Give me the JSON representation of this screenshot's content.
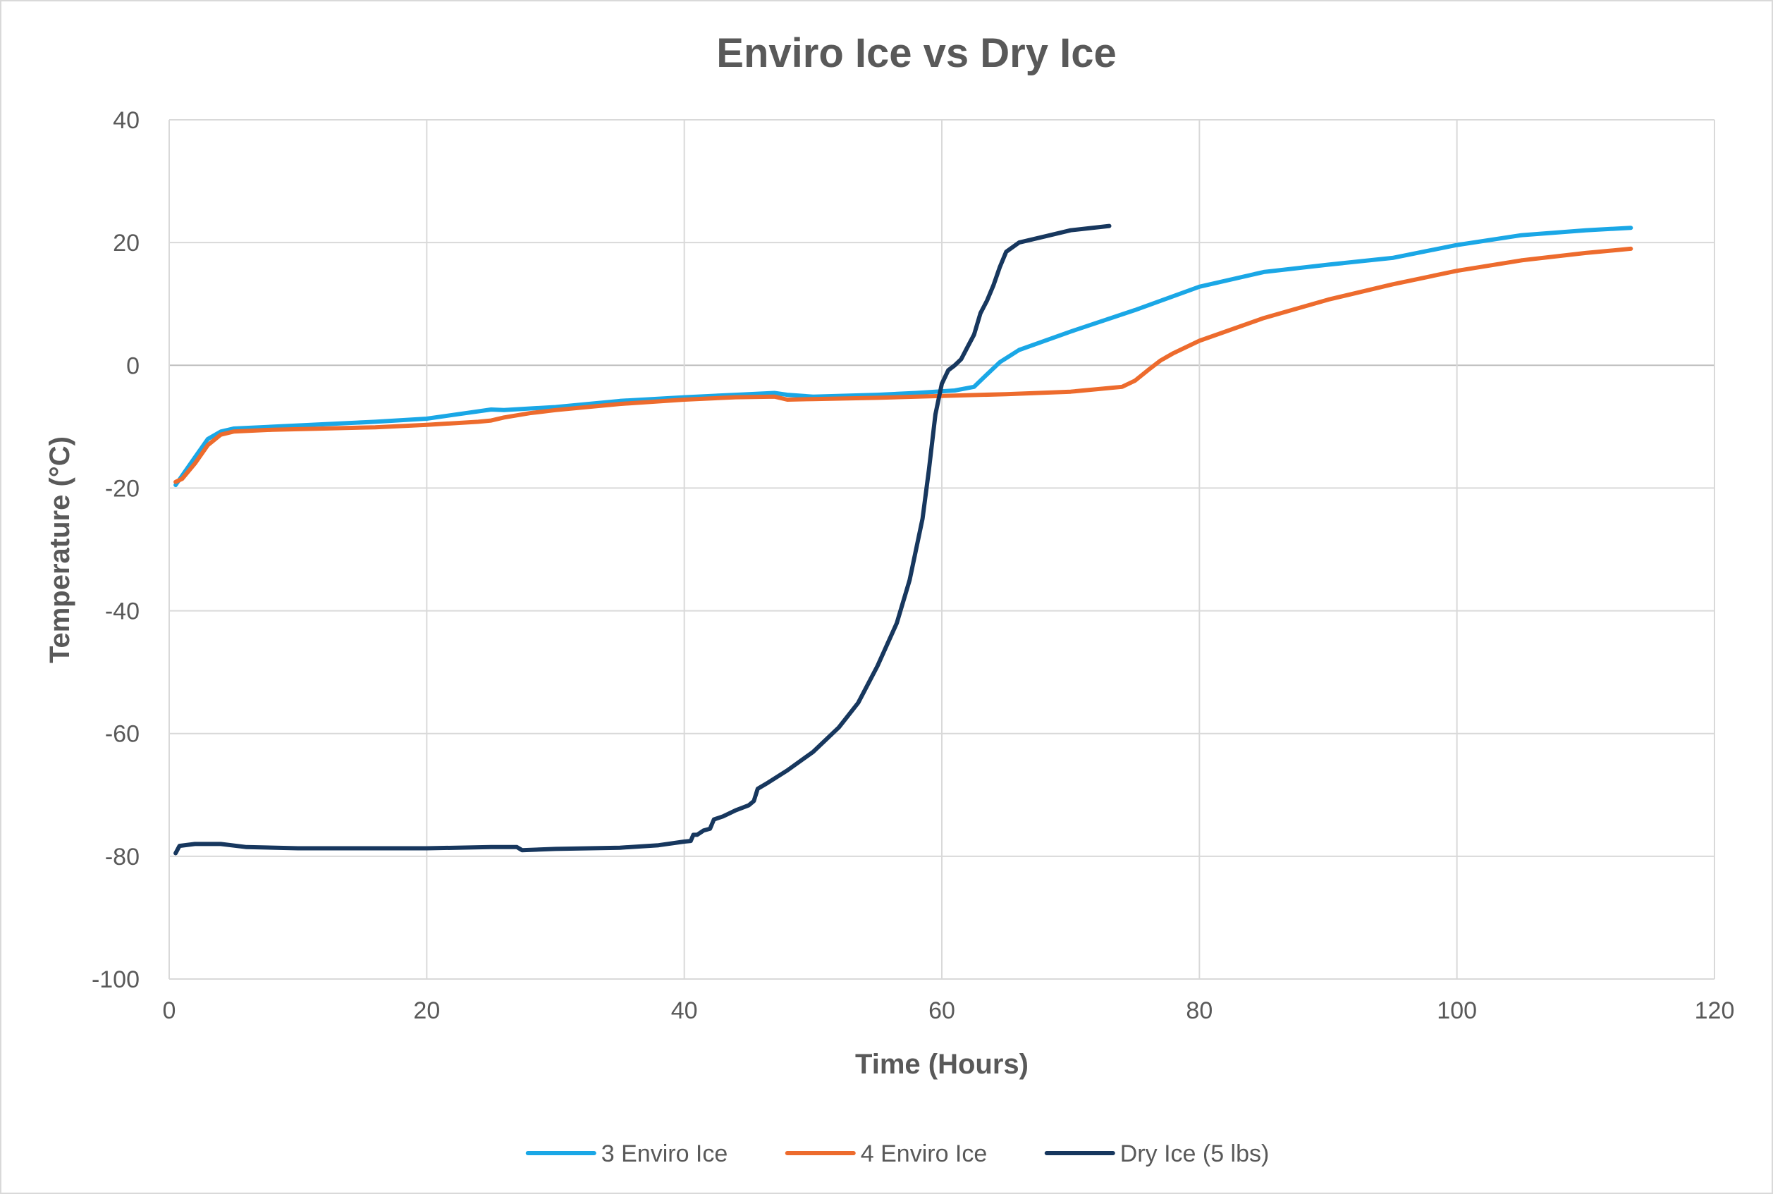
{
  "chart_data": {
    "type": "line",
    "title": "Enviro Ice vs Dry Ice",
    "xlabel": "Time (Hours)",
    "ylabel": "Temperature (°C)",
    "xlim": [
      0,
      120
    ],
    "ylim": [
      -100,
      40
    ],
    "x_ticks": [
      0,
      20,
      40,
      60,
      80,
      100,
      120
    ],
    "y_ticks": [
      -100,
      -80,
      -60,
      -40,
      -20,
      0,
      20,
      40
    ],
    "grid": true,
    "legend_position": "bottom",
    "series": [
      {
        "name": "3 Enviro Ice",
        "color": "#1aa7e6",
        "points": [
          [
            0.5,
            -19.5
          ],
          [
            1,
            -18
          ],
          [
            2,
            -15
          ],
          [
            3,
            -12
          ],
          [
            4,
            -10.8
          ],
          [
            5,
            -10.3
          ],
          [
            8,
            -10
          ],
          [
            12,
            -9.6
          ],
          [
            16,
            -9.2
          ],
          [
            20,
            -8.7
          ],
          [
            23,
            -7.8
          ],
          [
            25,
            -7.2
          ],
          [
            26,
            -7.3
          ],
          [
            27.5,
            -7.1
          ],
          [
            30,
            -6.8
          ],
          [
            35,
            -5.8
          ],
          [
            40,
            -5.2
          ],
          [
            44,
            -4.8
          ],
          [
            47,
            -4.5
          ],
          [
            48,
            -4.8
          ],
          [
            50,
            -5.1
          ],
          [
            55,
            -4.8
          ],
          [
            58,
            -4.5
          ],
          [
            61,
            -4.1
          ],
          [
            62.5,
            -3.5
          ],
          [
            63.5,
            -1.5
          ],
          [
            64.5,
            0.5
          ],
          [
            66,
            2.5
          ],
          [
            70,
            5.5
          ],
          [
            75,
            9
          ],
          [
            80,
            12.8
          ],
          [
            85,
            15.2
          ],
          [
            90,
            16.4
          ],
          [
            95,
            17.5
          ],
          [
            100,
            19.6
          ],
          [
            105,
            21.2
          ],
          [
            110,
            22
          ],
          [
            113.5,
            22.4
          ]
        ]
      },
      {
        "name": "4 Enviro Ice",
        "color": "#ed6b2d",
        "points": [
          [
            0.5,
            -19
          ],
          [
            1,
            -18.5
          ],
          [
            2,
            -16
          ],
          [
            3,
            -13
          ],
          [
            4,
            -11.3
          ],
          [
            5,
            -10.8
          ],
          [
            8,
            -10.5
          ],
          [
            12,
            -10.3
          ],
          [
            16,
            -10.1
          ],
          [
            20,
            -9.7
          ],
          [
            24,
            -9.2
          ],
          [
            25,
            -9
          ],
          [
            26,
            -8.5
          ],
          [
            28,
            -7.8
          ],
          [
            30,
            -7.3
          ],
          [
            35,
            -6.3
          ],
          [
            40,
            -5.6
          ],
          [
            44,
            -5.2
          ],
          [
            47,
            -5.1
          ],
          [
            48,
            -5.6
          ],
          [
            50,
            -5.5
          ],
          [
            55,
            -5.3
          ],
          [
            60,
            -5
          ],
          [
            65,
            -4.7
          ],
          [
            70,
            -4.3
          ],
          [
            74,
            -3.5
          ],
          [
            75,
            -2.5
          ],
          [
            76,
            -0.8
          ],
          [
            77,
            0.8
          ],
          [
            78,
            2
          ],
          [
            80,
            4
          ],
          [
            85,
            7.7
          ],
          [
            90,
            10.7
          ],
          [
            95,
            13.2
          ],
          [
            100,
            15.4
          ],
          [
            105,
            17.1
          ],
          [
            110,
            18.3
          ],
          [
            113.5,
            19
          ]
        ]
      },
      {
        "name": "Dry Ice (5 lbs)",
        "color": "#17375e",
        "points": [
          [
            0.5,
            -79.5
          ],
          [
            0.8,
            -78.3
          ],
          [
            2,
            -78
          ],
          [
            4,
            -78
          ],
          [
            6,
            -78.5
          ],
          [
            10,
            -78.7
          ],
          [
            15,
            -78.7
          ],
          [
            20,
            -78.7
          ],
          [
            25,
            -78.5
          ],
          [
            27,
            -78.5
          ],
          [
            27.4,
            -79
          ],
          [
            30,
            -78.8
          ],
          [
            35,
            -78.6
          ],
          [
            38,
            -78.2
          ],
          [
            40,
            -77.6
          ],
          [
            40.5,
            -77.5
          ],
          [
            40.7,
            -76.5
          ],
          [
            41,
            -76.5
          ],
          [
            41.5,
            -75.8
          ],
          [
            42,
            -75.5
          ],
          [
            42.3,
            -74
          ],
          [
            43,
            -73.5
          ],
          [
            44,
            -72.5
          ],
          [
            45,
            -71.7
          ],
          [
            45.4,
            -71
          ],
          [
            45.7,
            -69
          ],
          [
            46.5,
            -68
          ],
          [
            48,
            -66
          ],
          [
            50,
            -63
          ],
          [
            52,
            -59
          ],
          [
            53.5,
            -55
          ],
          [
            55,
            -49
          ],
          [
            56.5,
            -42
          ],
          [
            57.5,
            -35
          ],
          [
            58.5,
            -25
          ],
          [
            59,
            -17
          ],
          [
            59.5,
            -8
          ],
          [
            60,
            -3
          ],
          [
            60.5,
            -0.8
          ],
          [
            61,
            0
          ],
          [
            61.5,
            1
          ],
          [
            62,
            3
          ],
          [
            62.5,
            5
          ],
          [
            63,
            8.5
          ],
          [
            63.5,
            10.5
          ],
          [
            64,
            13
          ],
          [
            64.5,
            16
          ],
          [
            65,
            18.5
          ],
          [
            66,
            20
          ],
          [
            68,
            21
          ],
          [
            70,
            22
          ],
          [
            73,
            22.7
          ]
        ]
      }
    ]
  }
}
